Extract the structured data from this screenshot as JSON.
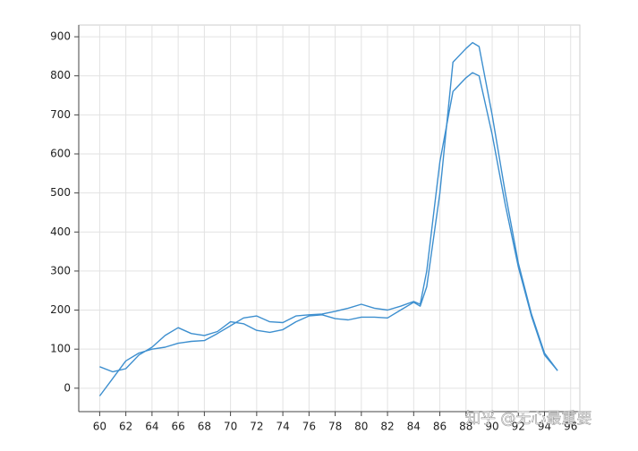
{
  "chart_data": {
    "type": "line",
    "x": [
      60,
      61,
      62,
      63,
      64,
      65,
      66,
      67,
      68,
      69,
      70,
      71,
      72,
      73,
      74,
      75,
      76,
      77,
      78,
      79,
      80,
      81,
      82,
      83,
      84,
      84.5,
      85,
      86,
      87,
      88,
      88.5,
      89,
      90,
      91,
      92,
      93,
      94,
      95
    ],
    "series": [
      {
        "color": "#3d8fcf",
        "values": [
          55,
          42,
          50,
          85,
          105,
          135,
          155,
          140,
          135,
          145,
          170,
          165,
          148,
          143,
          150,
          170,
          185,
          188,
          178,
          175,
          182,
          182,
          180,
          200,
          220,
          210,
          260,
          500,
          835,
          870,
          885,
          875,
          700,
          500,
          320,
          190,
          90,
          45
        ]
      },
      {
        "color": "#3d8fcf",
        "values": [
          -20,
          25,
          70,
          90,
          100,
          105,
          115,
          120,
          122,
          140,
          160,
          180,
          185,
          170,
          168,
          185,
          188,
          190,
          197,
          205,
          215,
          205,
          200,
          210,
          222,
          215,
          300,
          580,
          760,
          795,
          808,
          800,
          650,
          470,
          310,
          185,
          85,
          45
        ]
      }
    ],
    "xlim": [
      58.4,
      96.7
    ],
    "ylim": [
      -60,
      930
    ],
    "xticks": [
      60,
      62,
      64,
      66,
      68,
      70,
      72,
      74,
      76,
      78,
      80,
      82,
      84,
      86,
      88,
      90,
      92,
      94,
      96
    ],
    "yticks": [
      0,
      100,
      200,
      300,
      400,
      500,
      600,
      700,
      800,
      900
    ],
    "grid": true,
    "watermark": "知乎 @无心最重要"
  }
}
